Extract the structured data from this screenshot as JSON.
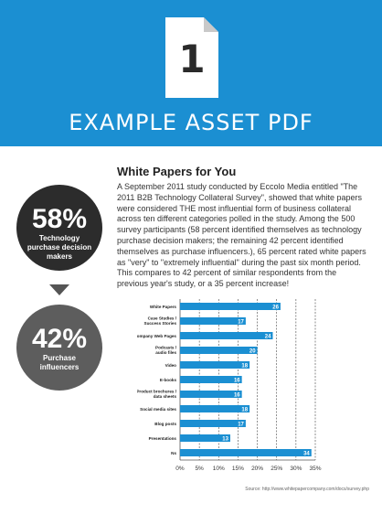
{
  "header": {
    "doc_number": "1",
    "title": "EXAMPLE ASSET PDF"
  },
  "article": {
    "title": "White Papers for You",
    "body": "A September 2011 study conducted by Eccolo Media entitled \"The 2011 B2B Technology Collateral Survey\", showed that white papers were considered THE most influential form of business collateral across ten different categories polled in the study. Among the 500 survey participants (58 percent identified themselves as technology purchase decision makers; the remaining 42 percent identified themselves as purchase influencers.), 65 percent rated white papers as \"very\" to \"extremely influential\" during the past six month period. This compares to 42 percent of similar respondents from the previous year's study, or a 35 percent increase!"
  },
  "stats": [
    {
      "value": "58%",
      "label": "Technology purchase decision makers"
    },
    {
      "value": "42%",
      "label": "Purchase influencers"
    }
  ],
  "colors": {
    "header_blue": "#1b8fd2",
    "bar_blue": "#1b8fd2",
    "stat_dark": "#2c2c2c",
    "stat_gray": "#5d5d5d"
  },
  "chart_data": {
    "type": "bar",
    "orientation": "horizontal",
    "categories": [
      "White Papers",
      "Case Studies / Success Stories",
      "Company Web Pages",
      "Podcasts / audio files",
      "Video",
      "E-books",
      "Product brochures / data sheets",
      "Social media sites",
      "Blog posts",
      "Presentations",
      "Ns"
    ],
    "values": [
      26,
      17,
      24,
      20,
      18,
      16,
      16,
      18,
      17,
      13,
      34
    ],
    "x_ticks": [
      "0%",
      "5%",
      "10%",
      "15%",
      "20%",
      "25%",
      "30%",
      "35%"
    ],
    "xlim": [
      0,
      35
    ],
    "grid": "vertical-dashed",
    "source": "Source: http://www.whitepapercompany.com/docs/survey.php"
  }
}
